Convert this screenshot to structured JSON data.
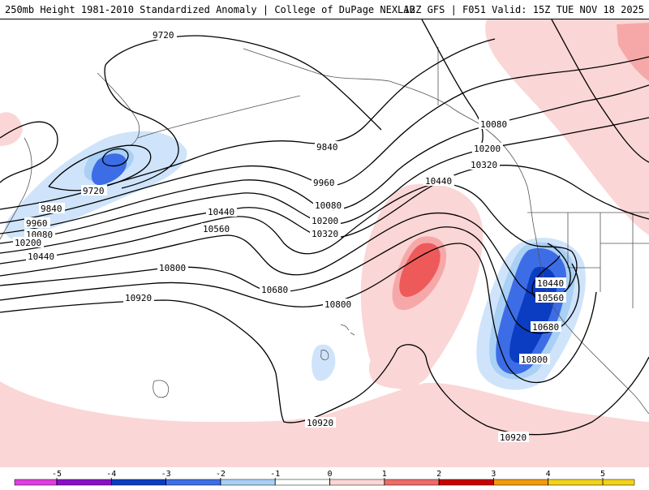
{
  "header": {
    "title_left": "250mb Height 1981-2010 Standardized Anomaly | College of DuPage NEXLAB",
    "title_right": "12Z GFS | F051 Valid: 15Z TUE NOV 18 2025"
  },
  "map": {
    "contour_labels": {
      "c9720_top": "9720",
      "c9720_left": "9720",
      "c9840_left": "9840",
      "c9840_mid": "9840",
      "c9960_left": "9960",
      "c9960_mid": "9960",
      "c10080_left": "10080",
      "c10080_mid": "10080",
      "c10080_ne": "10080",
      "c10200_left": "10200",
      "c10200_mid": "10200",
      "c10200_ne": "10200",
      "c10320_mid": "10320",
      "c10320_ne": "10320",
      "c10440_left": "10440",
      "c10440_mid": "10440",
      "c10440_ne": "10440",
      "c10440_low": "10440",
      "c10560_mid": "10560",
      "c10560_low": "10560",
      "c10680_mid": "10680",
      "c10680_low": "10680",
      "c10800_left": "10800",
      "c10800_mid": "10800",
      "c10800_low": "10800",
      "c10920_left": "10920",
      "c10920_bottom": "10920",
      "c10920_br": "10920"
    },
    "colors": {
      "neg1": "#cfe4fb",
      "neg2": "#a9d0f5",
      "neg3": "#3d6de6",
      "neg4": "#0a3dc2",
      "pos1": "#fbd6d6",
      "pos2": "#f6a8a8",
      "pos3": "#ee5a5a"
    }
  },
  "colorbar": {
    "ticks": [
      "-5",
      "-4",
      "-3",
      "-2",
      "-1",
      "0",
      "1",
      "2",
      "3",
      "4",
      "5"
    ],
    "colors": [
      "#e03ce0",
      "#8a10c8",
      "#0a3dc2",
      "#3d6de6",
      "#a9d0f5",
      "#ffffff",
      "#fbd6d6",
      "#f06a6a",
      "#c80000",
      "#f29b0a",
      "#f2d21a"
    ]
  }
}
